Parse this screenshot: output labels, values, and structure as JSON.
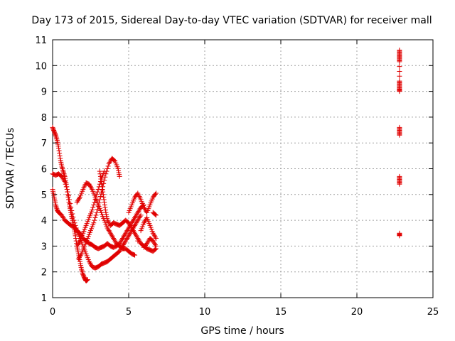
{
  "chart_data": {
    "type": "scatter",
    "title": "Day 173 of 2015, Sidereal Day-to-day VTEC variation (SDTVAR) for receiver mall",
    "xlabel": "GPS time / hours",
    "ylabel": "SDTVAR / TECUs",
    "xlim": [
      0,
      25
    ],
    "ylim": [
      1,
      11
    ],
    "x_ticks": [
      "0",
      "5",
      "10",
      "15",
      "20",
      "25"
    ],
    "y_ticks": [
      "1",
      "2",
      "3",
      "4",
      "5",
      "6",
      "7",
      "8",
      "9",
      "10",
      "11"
    ],
    "grid": true,
    "marker": "plus",
    "color": "#e00000",
    "series": [
      {
        "points": [
          [
            0.0,
            7.6
          ],
          [
            0.1,
            7.45
          ],
          [
            0.2,
            7.3
          ],
          [
            0.3,
            7.1
          ],
          [
            0.4,
            6.8
          ],
          [
            0.5,
            6.4
          ],
          [
            0.6,
            6.1
          ],
          [
            0.7,
            5.9
          ],
          [
            0.8,
            5.7
          ],
          [
            0.9,
            5.4
          ],
          [
            1.0,
            5.0
          ],
          [
            1.1,
            4.6
          ],
          [
            1.2,
            4.3
          ],
          [
            1.3,
            4.0
          ],
          [
            1.4,
            3.7
          ],
          [
            1.5,
            3.4
          ],
          [
            1.6,
            3.0
          ],
          [
            1.7,
            2.7
          ],
          [
            1.8,
            2.4
          ],
          [
            1.9,
            2.1
          ],
          [
            2.0,
            1.9
          ],
          [
            2.1,
            1.75
          ],
          [
            2.2,
            1.65
          ],
          [
            2.3,
            1.7
          ]
        ]
      },
      {
        "points": [
          [
            0.0,
            5.8
          ],
          [
            0.2,
            5.75
          ],
          [
            0.4,
            5.8
          ],
          [
            0.6,
            5.7
          ],
          [
            0.8,
            5.5
          ],
          [
            1.0,
            5.1
          ],
          [
            1.2,
            4.5
          ],
          [
            1.4,
            4.0
          ],
          [
            1.6,
            3.6
          ],
          [
            1.8,
            3.3
          ],
          [
            2.0,
            3.0
          ],
          [
            2.2,
            2.7
          ],
          [
            2.4,
            2.4
          ],
          [
            2.6,
            2.2
          ],
          [
            2.8,
            2.15
          ],
          [
            3.0,
            2.2
          ],
          [
            3.2,
            2.3
          ],
          [
            3.4,
            2.35
          ],
          [
            3.6,
            2.4
          ],
          [
            3.8,
            2.5
          ],
          [
            4.0,
            2.6
          ],
          [
            4.2,
            2.7
          ],
          [
            4.4,
            2.8
          ],
          [
            4.6,
            3.0
          ],
          [
            4.8,
            3.2
          ],
          [
            5.0,
            3.4
          ],
          [
            5.2,
            3.6
          ],
          [
            5.4,
            3.8
          ],
          [
            5.6,
            4.0
          ],
          [
            5.8,
            4.2
          ]
        ]
      },
      {
        "points": [
          [
            0.0,
            5.2
          ],
          [
            0.1,
            4.9
          ],
          [
            0.2,
            4.6
          ],
          [
            0.3,
            4.4
          ],
          [
            0.4,
            4.3
          ],
          [
            0.6,
            4.2
          ],
          [
            0.8,
            4.0
          ],
          [
            1.0,
            3.9
          ],
          [
            1.2,
            3.8
          ],
          [
            1.4,
            3.75
          ],
          [
            1.6,
            3.6
          ],
          [
            1.8,
            3.5
          ],
          [
            2.0,
            3.3
          ],
          [
            2.2,
            3.2
          ],
          [
            2.4,
            3.1
          ],
          [
            2.6,
            3.05
          ],
          [
            2.8,
            2.95
          ],
          [
            3.0,
            2.9
          ],
          [
            3.2,
            2.95
          ],
          [
            3.4,
            3.0
          ],
          [
            3.6,
            3.1
          ],
          [
            3.8,
            3.0
          ],
          [
            4.0,
            2.95
          ],
          [
            4.2,
            3.0
          ],
          [
            4.4,
            3.1
          ],
          [
            4.6,
            3.3
          ],
          [
            4.8,
            3.5
          ],
          [
            5.0,
            3.7
          ],
          [
            5.2,
            3.9
          ],
          [
            5.4,
            4.1
          ],
          [
            5.6,
            4.3
          ],
          [
            5.8,
            4.5
          ],
          [
            6.0,
            4.6
          ]
        ]
      },
      {
        "points": [
          [
            1.6,
            4.7
          ],
          [
            1.8,
            4.9
          ],
          [
            2.0,
            5.2
          ],
          [
            2.2,
            5.45
          ],
          [
            2.4,
            5.4
          ],
          [
            2.6,
            5.2
          ],
          [
            2.8,
            4.9
          ],
          [
            3.0,
            4.6
          ],
          [
            3.2,
            4.3
          ],
          [
            3.4,
            4.0
          ],
          [
            3.6,
            3.7
          ],
          [
            3.8,
            3.5
          ],
          [
            4.0,
            3.3
          ],
          [
            4.2,
            3.1
          ],
          [
            4.4,
            3.0
          ],
          [
            4.6,
            2.9
          ],
          [
            4.8,
            2.9
          ],
          [
            5.0,
            2.8
          ],
          [
            5.2,
            2.7
          ],
          [
            5.4,
            2.65
          ]
        ]
      },
      {
        "points": [
          [
            1.7,
            2.5
          ],
          [
            1.9,
            2.7
          ],
          [
            2.1,
            3.0
          ],
          [
            2.3,
            3.3
          ],
          [
            2.5,
            3.6
          ],
          [
            2.7,
            3.9
          ],
          [
            2.9,
            4.3
          ],
          [
            3.1,
            4.8
          ],
          [
            3.3,
            5.3
          ],
          [
            3.5,
            5.8
          ],
          [
            3.7,
            6.2
          ],
          [
            3.9,
            6.4
          ],
          [
            4.1,
            6.3
          ],
          [
            4.3,
            6.0
          ],
          [
            4.4,
            5.7
          ]
        ]
      },
      {
        "points": [
          [
            3.1,
            5.9
          ],
          [
            3.2,
            5.5
          ],
          [
            3.3,
            5.1
          ],
          [
            3.4,
            4.7
          ],
          [
            3.5,
            4.3
          ],
          [
            3.6,
            4.0
          ],
          [
            3.8,
            3.8
          ],
          [
            4.0,
            3.9
          ],
          [
            4.2,
            3.85
          ],
          [
            4.4,
            3.8
          ],
          [
            4.6,
            3.9
          ],
          [
            4.8,
            4.0
          ],
          [
            5.0,
            3.9
          ],
          [
            5.2,
            3.7
          ],
          [
            5.4,
            3.5
          ],
          [
            5.6,
            3.3
          ],
          [
            5.8,
            3.1
          ],
          [
            6.0,
            3.0
          ],
          [
            6.2,
            2.9
          ],
          [
            6.4,
            2.85
          ],
          [
            6.6,
            2.8
          ],
          [
            6.8,
            2.9
          ]
        ]
      },
      {
        "points": [
          [
            1.6,
            3.0
          ],
          [
            1.8,
            3.2
          ],
          [
            2.0,
            3.5
          ],
          [
            2.2,
            3.8
          ],
          [
            2.4,
            4.1
          ],
          [
            2.6,
            4.4
          ],
          [
            2.8,
            4.8
          ],
          [
            3.0,
            5.2
          ],
          [
            3.2,
            5.6
          ],
          [
            3.4,
            5.9
          ]
        ]
      },
      {
        "points": [
          [
            5.0,
            4.3
          ],
          [
            5.2,
            4.6
          ],
          [
            5.4,
            4.9
          ],
          [
            5.6,
            5.05
          ],
          [
            5.8,
            4.8
          ],
          [
            6.0,
            4.5
          ],
          [
            6.2,
            4.3
          ],
          [
            6.4,
            4.6
          ],
          [
            6.6,
            4.9
          ],
          [
            6.8,
            5.05
          ],
          [
            5.8,
            3.6
          ],
          [
            6.0,
            3.9
          ],
          [
            6.2,
            4.1
          ],
          [
            6.4,
            3.8
          ],
          [
            6.6,
            3.5
          ],
          [
            6.8,
            3.3
          ],
          [
            6.0,
            2.95
          ],
          [
            6.2,
            3.1
          ],
          [
            6.4,
            3.3
          ],
          [
            6.6,
            3.2
          ],
          [
            6.8,
            3.0
          ],
          [
            5.6,
            3.2
          ],
          [
            6.8,
            4.2
          ],
          [
            6.6,
            4.3
          ]
        ]
      },
      {
        "points": [
          [
            22.8,
            10.6
          ],
          [
            22.8,
            10.45
          ],
          [
            22.8,
            10.3
          ],
          [
            22.8,
            10.15
          ],
          [
            22.8,
            9.4
          ],
          [
            22.8,
            9.25
          ],
          [
            22.8,
            9.1
          ],
          [
            22.8,
            9.0
          ],
          [
            22.8,
            7.6
          ],
          [
            22.8,
            7.45
          ],
          [
            22.8,
            7.3
          ],
          [
            22.8,
            5.7
          ],
          [
            22.8,
            5.55
          ],
          [
            22.8,
            5.4
          ],
          [
            22.8,
            3.5
          ],
          [
            22.8,
            3.4
          ]
        ]
      }
    ]
  }
}
